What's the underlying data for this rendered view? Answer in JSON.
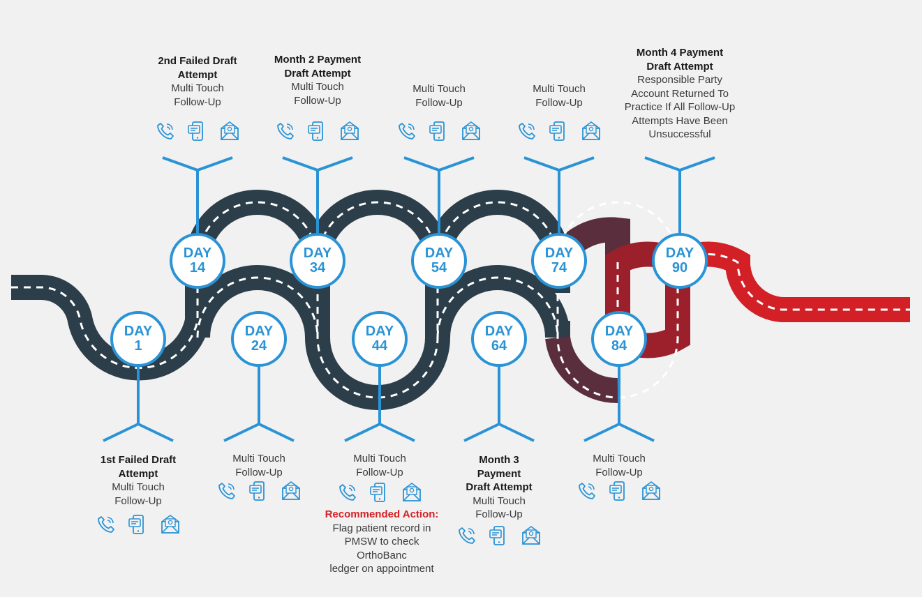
{
  "colors": {
    "road_dark": "#2c3e4a",
    "road_maroon": "#5a2e3c",
    "road_crimson": "#9c1f2c",
    "road_red": "#d32027",
    "accent_blue": "#2a93d5",
    "warning_red": "#d32027"
  },
  "icons": [
    "phone-icon",
    "mobile-message-icon",
    "email-icon"
  ],
  "milestones": [
    {
      "day_word": "DAY",
      "day_num": "1",
      "lines_bold": [
        "1st Failed Draft",
        "Attempt"
      ],
      "lines": [
        "Multi Touch",
        "Follow-Up"
      ]
    },
    {
      "day_word": "DAY",
      "day_num": "14",
      "lines_bold": [
        "2nd Failed Draft",
        "Attempt"
      ],
      "lines": [
        "Multi Touch",
        "Follow-Up"
      ]
    },
    {
      "day_word": "DAY",
      "day_num": "24",
      "lines_bold": [],
      "lines": [
        "Multi Touch",
        "Follow-Up"
      ]
    },
    {
      "day_word": "DAY",
      "day_num": "34",
      "lines_bold": [
        "Month 2 Payment",
        "Draft Attempt"
      ],
      "lines": [
        "Multi Touch",
        "Follow-Up"
      ]
    },
    {
      "day_word": "DAY",
      "day_num": "44",
      "lines_bold": [],
      "lines": [
        "Multi Touch",
        "Follow-Up"
      ],
      "recommended_label": "Recommended Action:",
      "recommended_text": [
        "Flag patient record in",
        "PMSW to check",
        "OrthoBanc",
        "ledger on appointment"
      ]
    },
    {
      "day_word": "DAY",
      "day_num": "54",
      "lines_bold": [],
      "lines": [
        "Multi Touch",
        "Follow-Up"
      ]
    },
    {
      "day_word": "DAY",
      "day_num": "64",
      "lines_bold": [
        "Month 3",
        "Payment",
        "Draft Attempt"
      ],
      "lines": [
        "Multi Touch",
        "Follow-Up"
      ]
    },
    {
      "day_word": "DAY",
      "day_num": "74",
      "lines_bold": [],
      "lines": [
        "Multi Touch",
        "Follow-Up"
      ]
    },
    {
      "day_word": "DAY",
      "day_num": "84",
      "lines_bold": [],
      "lines": [
        "Multi Touch",
        "Follow-Up"
      ]
    },
    {
      "day_word": "DAY",
      "day_num": "90",
      "lines_bold": [
        "Month 4 Payment",
        "Draft Attempt"
      ],
      "lines": [
        "Responsible Party",
        "Account Returned To",
        "Practice If All Follow-Up",
        "Attempts Have Been",
        "Unsuccessful"
      ]
    }
  ]
}
